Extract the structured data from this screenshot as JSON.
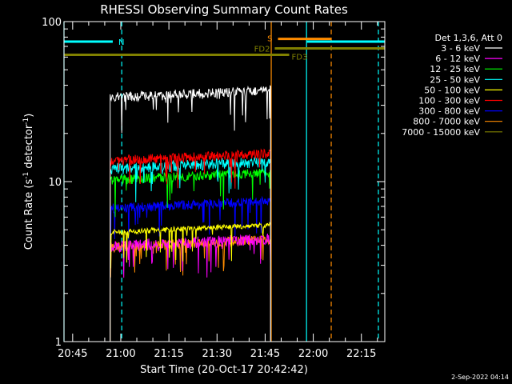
{
  "chart_data": {
    "type": "line",
    "title": "RHESSI Observing Summary Count Rates",
    "xlabel": "Start Time (20-Oct-17 20:42:42)",
    "ylabel": "Count Rate (s",
    "ylabel_sup1": "-1",
    "ylabel_mid": " detector",
    "ylabel_sup2": "-1",
    "ylabel_end": ")",
    "y_scale": "log",
    "ylim": [
      1,
      100
    ],
    "xlim_minutes": [
      -2.7,
      97.3
    ],
    "y_ticks": [
      "1",
      "10",
      "100"
    ],
    "x_ticks": [
      {
        "label": "20:45",
        "min": 0
      },
      {
        "label": "21:00",
        "min": 15
      },
      {
        "label": "21:15",
        "min": 30
      },
      {
        "label": "21:30",
        "min": 45
      },
      {
        "label": "21:45",
        "min": 60
      },
      {
        "label": "22:00",
        "min": 75
      },
      {
        "label": "22:15",
        "min": 90
      }
    ],
    "data_interval_minutes": [
      11.7,
      61.7
    ],
    "legend_header": "Det 1,3,6, Att 0",
    "series": [
      {
        "name": "3 - 6 keV",
        "color": "#000000",
        "levels": [
          31,
          36
        ]
      },
      {
        "name": "6 - 12 keV",
        "color": "#ff00ff",
        "levels": [
          3.6,
          4.3
        ]
      },
      {
        "name": "12 - 25 keV",
        "color": "#00ff00",
        "levels": [
          9.5,
          11
        ]
      },
      {
        "name": "25 - 50 keV",
        "color": "#00ffff",
        "levels": [
          11,
          13
        ]
      },
      {
        "name": "50 - 100 keV",
        "color": "#ffff00",
        "levels": [
          4.6,
          5
        ]
      },
      {
        "name": "100 - 300 keV",
        "color": "#ff0000",
        "levels": [
          12.5,
          14.5
        ]
      },
      {
        "name": "300 - 800 keV",
        "color": "#0000ff",
        "levels": [
          6.3,
          7.3
        ]
      },
      {
        "name": "800 - 7000 keV",
        "color": "#ff8c00",
        "levels": [
          3.6,
          4.2
        ]
      },
      {
        "name": "7000 - 15000 keV",
        "color": "#808000",
        "levels": [
          null,
          null
        ]
      }
    ],
    "annotations": [
      {
        "label": "N",
        "color": "#00ffff",
        "bar_min": [
          -2.7,
          12.5
        ],
        "line_min": 15.3,
        "solid_line_min": -2.7,
        "y": 75
      },
      {
        "label": "S",
        "color": "#ff8c00",
        "bar_min": [
          64,
          80.6
        ],
        "line_min": 80.6,
        "solid_line_min": 61.9,
        "y": 78
      },
      {
        "label": "FD2",
        "color": "#808000",
        "bar_min": [
          63,
          97.3
        ],
        "line_min": null,
        "solid_line_min": null,
        "y": 68
      },
      {
        "label": "FD3",
        "color": "#808000",
        "bar_min": [
          -2.7,
          67.5
        ],
        "line_min": null,
        "solid_line_min": null,
        "y": 62
      }
    ],
    "extra_lines": [
      {
        "color": "#00ffff",
        "style": "solid",
        "min": 72.9
      },
      {
        "color": "#00ffff",
        "style": "dashed",
        "min": 95.3
      },
      {
        "color": "#ff8c00",
        "style": "dashed",
        "min": 80.6
      },
      {
        "color": "#00ffff",
        "style": "dashed",
        "min": 15.3
      }
    ],
    "grid": false,
    "legend_position": "top-right",
    "background": "#000000"
  },
  "timestamp": "2-Sep-2022 04:14"
}
